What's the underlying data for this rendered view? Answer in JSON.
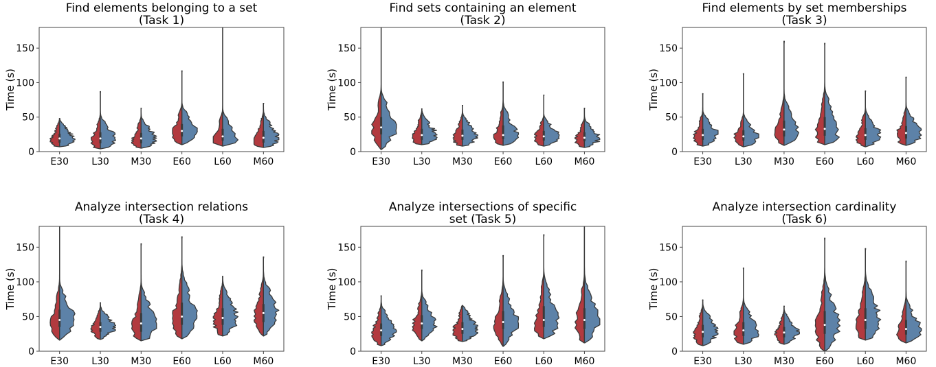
{
  "colors": {
    "left": "#b23a3f",
    "right": "#5d82a8"
  },
  "chart_data": [
    {
      "type": "violin",
      "title": "Find elements belonging to a set",
      "subtitle": "(Task 1)",
      "ylabel": "Time (s)",
      "categories": [
        "E30",
        "L30",
        "M30",
        "E60",
        "L60",
        "M60"
      ],
      "ylim": [
        0,
        180
      ],
      "yticks": [
        0,
        50,
        100,
        150
      ],
      "groups": [
        {
          "min": 7,
          "max": 48,
          "q1": 13,
          "median": 19,
          "q3": 26
        },
        {
          "min": 4,
          "max": 87,
          "q1": 12,
          "median": 19,
          "q3": 28
        },
        {
          "min": 5,
          "max": 63,
          "q1": 12,
          "median": 19,
          "q3": 27
        },
        {
          "min": 10,
          "max": 117,
          "q1": 22,
          "median": 30,
          "q3": 40
        },
        {
          "min": 8,
          "max": 190,
          "q1": 16,
          "median": 22,
          "q3": 33
        },
        {
          "min": 6,
          "max": 70,
          "q1": 13,
          "median": 20,
          "q3": 30
        }
      ]
    },
    {
      "type": "violin",
      "title": "Find sets containing an element",
      "subtitle": "(Task 2)",
      "ylabel": "Time (s)",
      "categories": [
        "E30",
        "L30",
        "M30",
        "E60",
        "L60",
        "M60"
      ],
      "ylim": [
        0,
        180
      ],
      "yticks": [
        0,
        50,
        100,
        150
      ],
      "groups": [
        {
          "min": 3,
          "max": 185,
          "q1": 25,
          "median": 35,
          "q3": 50
        },
        {
          "min": 10,
          "max": 62,
          "q1": 17,
          "median": 24,
          "q3": 33
        },
        {
          "min": 8,
          "max": 67,
          "q1": 17,
          "median": 23,
          "q3": 32
        },
        {
          "min": 9,
          "max": 101,
          "q1": 18,
          "median": 24,
          "q3": 38
        },
        {
          "min": 8,
          "max": 82,
          "q1": 16,
          "median": 22,
          "q3": 30
        },
        {
          "min": 6,
          "max": 63,
          "q1": 15,
          "median": 20,
          "q3": 28
        }
      ]
    },
    {
      "type": "violin",
      "title": "Find elements by set memberships",
      "subtitle": "(Task 3)",
      "ylabel": "Time (s)",
      "categories": [
        "E30",
        "L30",
        "M30",
        "E60",
        "L60",
        "M60"
      ],
      "ylim": [
        0,
        180
      ],
      "yticks": [
        0,
        50,
        100,
        150
      ],
      "groups": [
        {
          "min": 8,
          "max": 84,
          "q1": 17,
          "median": 24,
          "q3": 33
        },
        {
          "min": 7,
          "max": 113,
          "q1": 16,
          "median": 22,
          "q3": 31
        },
        {
          "min": 9,
          "max": 160,
          "q1": 22,
          "median": 32,
          "q3": 45
        },
        {
          "min": 10,
          "max": 157,
          "q1": 23,
          "median": 33,
          "q3": 50
        },
        {
          "min": 7,
          "max": 88,
          "q1": 17,
          "median": 24,
          "q3": 34
        },
        {
          "min": 9,
          "max": 108,
          "q1": 19,
          "median": 27,
          "q3": 37
        }
      ]
    },
    {
      "type": "violin",
      "title": "Analyze intersection relations",
      "subtitle": "(Task 4)",
      "ylabel": "Time (s)",
      "categories": [
        "E30",
        "L30",
        "M30",
        "E60",
        "L60",
        "M60"
      ],
      "ylim": [
        0,
        180
      ],
      "yticks": [
        0,
        50,
        100,
        150
      ],
      "groups": [
        {
          "min": 16,
          "max": 185,
          "q1": 35,
          "median": 45,
          "q3": 60
        },
        {
          "min": 17,
          "max": 70,
          "q1": 28,
          "median": 35,
          "q3": 42
        },
        {
          "min": 15,
          "max": 155,
          "q1": 28,
          "median": 40,
          "q3": 55
        },
        {
          "min": 18,
          "max": 165,
          "q1": 38,
          "median": 50,
          "q3": 70
        },
        {
          "min": 22,
          "max": 108,
          "q1": 38,
          "median": 48,
          "q3": 62
        },
        {
          "min": 22,
          "max": 136,
          "q1": 42,
          "median": 55,
          "q3": 68
        }
      ]
    },
    {
      "type": "violin",
      "title": "Analyze intersections of specific",
      "subtitle": "set (Task 5)",
      "ylabel": "Time (s)",
      "categories": [
        "E30",
        "L30",
        "M30",
        "E60",
        "L60",
        "M60"
      ],
      "ylim": [
        0,
        180
      ],
      "yticks": [
        0,
        50,
        100,
        150
      ],
      "groups": [
        {
          "min": 8,
          "max": 80,
          "q1": 22,
          "median": 30,
          "q3": 40
        },
        {
          "min": 15,
          "max": 117,
          "q1": 32,
          "median": 40,
          "q3": 52
        },
        {
          "min": 14,
          "max": 66,
          "q1": 25,
          "median": 32,
          "q3": 42
        },
        {
          "min": 7,
          "max": 138,
          "q1": 32,
          "median": 42,
          "q3": 58
        },
        {
          "min": 18,
          "max": 168,
          "q1": 35,
          "median": 45,
          "q3": 65
        },
        {
          "min": 12,
          "max": 185,
          "q1": 32,
          "median": 45,
          "q3": 62
        }
      ]
    },
    {
      "type": "violin",
      "title": "Analyze intersection cardinality",
      "subtitle": "(Task 6)",
      "ylabel": "Time (s)",
      "categories": [
        "E30",
        "L30",
        "M30",
        "E60",
        "L60",
        "M60"
      ],
      "ylim": [
        0,
        180
      ],
      "yticks": [
        0,
        50,
        100,
        150
      ],
      "groups": [
        {
          "min": 8,
          "max": 74,
          "q1": 20,
          "median": 28,
          "q3": 38
        },
        {
          "min": 10,
          "max": 120,
          "q1": 22,
          "median": 30,
          "q3": 42
        },
        {
          "min": 10,
          "max": 65,
          "q1": 20,
          "median": 27,
          "q3": 35
        },
        {
          "min": 0,
          "max": 163,
          "q1": 25,
          "median": 38,
          "q3": 58
        },
        {
          "min": 16,
          "max": 148,
          "q1": 32,
          "median": 45,
          "q3": 62
        },
        {
          "min": 12,
          "max": 130,
          "q1": 24,
          "median": 32,
          "q3": 45
        }
      ]
    }
  ]
}
